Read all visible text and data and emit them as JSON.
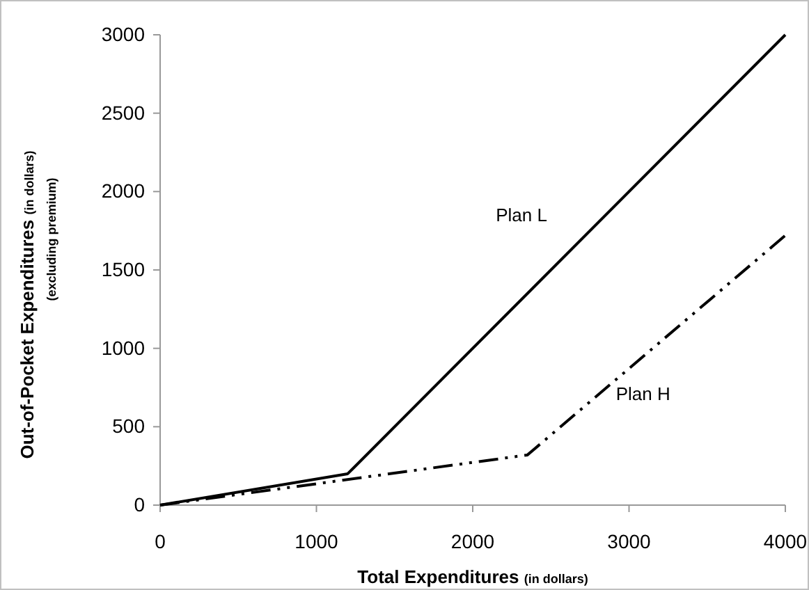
{
  "chart_data": {
    "type": "line",
    "xlabel": "Total Expenditures (in dollars)",
    "ylabel": "Out-of-Pocket Expenditures (in dollars) (excluding premium)",
    "xlim": [
      0,
      4000
    ],
    "xticks": [
      0,
      1000,
      2000,
      3000,
      4000
    ],
    "ylim": [
      0,
      3000
    ],
    "yticks": [
      0,
      500,
      1000,
      1500,
      2000,
      2500,
      3000
    ],
    "series": [
      {
        "name": "Plan L",
        "color": "#000000",
        "x": [
          0,
          1200,
          4000
        ],
        "values": [
          0,
          200,
          3000
        ],
        "line_style": "solid"
      },
      {
        "name": "Plan H",
        "color": "#000000",
        "x": [
          0,
          2350,
          4000
        ],
        "values": [
          0,
          320,
          1720
        ],
        "line_style": "dashed"
      }
    ],
    "legend": false,
    "grid": false,
    "marker": "none"
  }
}
